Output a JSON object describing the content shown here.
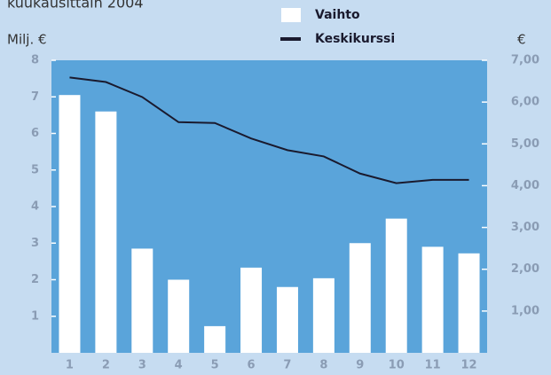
{
  "chart_data": {
    "type": "bar_line",
    "title": "kuukausittain 2004",
    "ylabel": "Milj. €",
    "y2label": "€",
    "categories": [
      "1",
      "2",
      "3",
      "4",
      "5",
      "6",
      "7",
      "8",
      "9",
      "10",
      "11",
      "12"
    ],
    "series": [
      {
        "name": "Vaihto",
        "type": "bar",
        "color": "#ffffff",
        "values": [
          7.05,
          6.6,
          2.85,
          2.0,
          0.73,
          2.33,
          1.8,
          2.04,
          3.0,
          3.67,
          2.9,
          2.72
        ]
      },
      {
        "name": "Keskikurssi",
        "type": "line",
        "axis": "y2",
        "color": "#1a1a2e",
        "values": [
          6.59,
          6.48,
          6.12,
          5.52,
          5.5,
          5.13,
          4.85,
          4.7,
          4.29,
          4.06,
          4.14,
          4.14
        ]
      }
    ],
    "ylim": [
      0,
      8
    ],
    "yticks": [
      1,
      2,
      3,
      4,
      5,
      6,
      7,
      8
    ],
    "y2lim": [
      0,
      7
    ],
    "y2ticks": [
      {
        "value": 1,
        "label": "1,00"
      },
      {
        "value": 2,
        "label": "2,00"
      },
      {
        "value": 3,
        "label": "3,00"
      },
      {
        "value": 4,
        "label": "4,00"
      },
      {
        "value": 5,
        "label": "5,00"
      },
      {
        "value": 6,
        "label": "6,00"
      },
      {
        "value": 7,
        "label": "7,00"
      }
    ],
    "plot_background": "#5aa4da"
  }
}
